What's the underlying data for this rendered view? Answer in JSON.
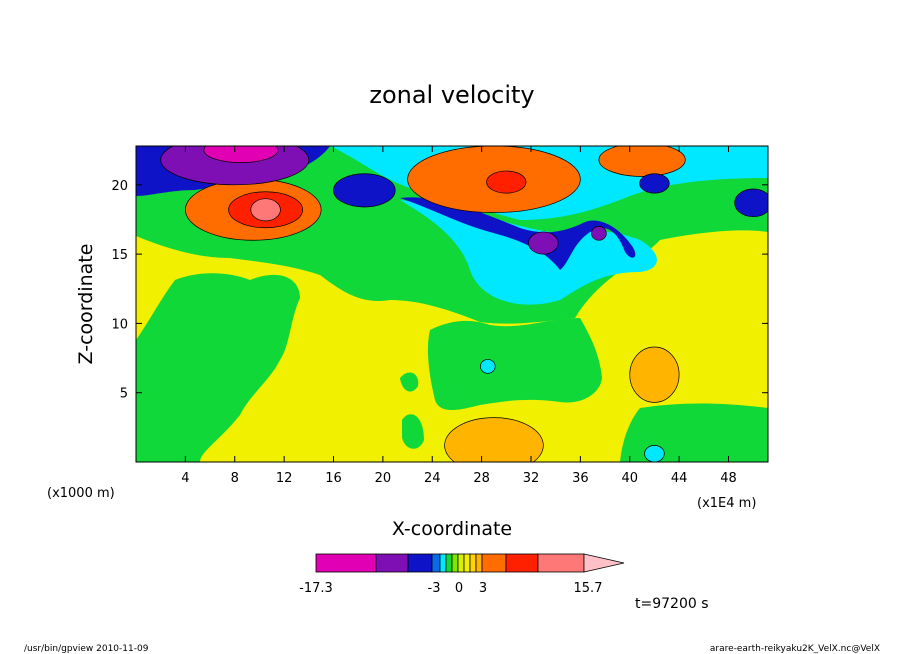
{
  "chart_data": {
    "type": "heatmap",
    "title": "zonal velocity",
    "xlabel": "X-coordinate",
    "ylabel": "Z-coordinate",
    "x_unit": "(x1E4 m)",
    "y_unit": "(x1000 m)",
    "xlim": [
      0,
      51.2
    ],
    "ylim": [
      0,
      22.8
    ],
    "x_ticks": [
      4,
      8,
      12,
      16,
      20,
      24,
      28,
      32,
      36,
      40,
      44,
      48
    ],
    "y_ticks": [
      5,
      10,
      15,
      20
    ],
    "colorbar": {
      "labels": [
        "-17.3",
        "-3",
        "0",
        "3",
        "15.7"
      ],
      "colors": [
        "#e200b4",
        "#7e0fb4",
        "#0f13c8",
        "#0a6ae8",
        "#00e8ff",
        "#10d838",
        "#78e800",
        "#d8f000",
        "#f0f000",
        "#ffd200",
        "#ffb400",
        "#ff6c00",
        "#ff2000",
        "#ff7878",
        "#ffc0c8"
      ]
    },
    "blobs": [
      {
        "x": 9.5,
        "y": 18.2,
        "rx": 5.5,
        "ry": 2.2,
        "level": 11
      },
      {
        "x": 10.5,
        "y": 18.2,
        "rx": 3.0,
        "ry": 1.3,
        "level": 12
      },
      {
        "x": 10.5,
        "y": 18.2,
        "rx": 1.2,
        "ry": 0.8,
        "level": 13
      },
      {
        "x": 8.0,
        "y": 21.8,
        "rx": 6.0,
        "ry": 1.8,
        "level": 1
      },
      {
        "x": 8.5,
        "y": 22.5,
        "rx": 3.0,
        "ry": 0.9,
        "level": 0
      },
      {
        "x": 18.5,
        "y": 19.6,
        "rx": 2.5,
        "ry": 1.2,
        "level": 2
      },
      {
        "x": 29.0,
        "y": 20.4,
        "rx": 7.0,
        "ry": 2.4,
        "level": 11
      },
      {
        "x": 30.0,
        "y": 20.2,
        "rx": 1.6,
        "ry": 0.8,
        "level": 12
      },
      {
        "x": 41.0,
        "y": 21.8,
        "rx": 3.5,
        "ry": 1.2,
        "level": 11
      },
      {
        "x": 42.0,
        "y": 20.1,
        "rx": 1.2,
        "ry": 0.7,
        "level": 2
      },
      {
        "x": 50.0,
        "y": 18.7,
        "rx": 1.5,
        "ry": 1.0,
        "level": 2
      },
      {
        "x": 33.0,
        "y": 15.8,
        "rx": 1.2,
        "ry": 0.8,
        "level": 1
      },
      {
        "x": 37.5,
        "y": 16.5,
        "rx": 0.6,
        "ry": 0.5,
        "level": 1
      },
      {
        "x": 42.0,
        "y": 6.3,
        "rx": 2.0,
        "ry": 2.0,
        "level": 10
      },
      {
        "x": 29.0,
        "y": 1.2,
        "rx": 4.0,
        "ry": 2.0,
        "level": 10
      },
      {
        "x": 42.0,
        "y": 0.6,
        "rx": 0.8,
        "ry": 0.6,
        "level": 4
      },
      {
        "x": 28.5,
        "y": 6.9,
        "rx": 0.6,
        "ry": 0.5,
        "level": 4
      }
    ]
  },
  "footer": {
    "left": "/usr/bin/gpview   2010-11-09",
    "right": "arare-earth-reikyaku2K_VelX.nc@VelX"
  },
  "time_label": "t=97200 s"
}
